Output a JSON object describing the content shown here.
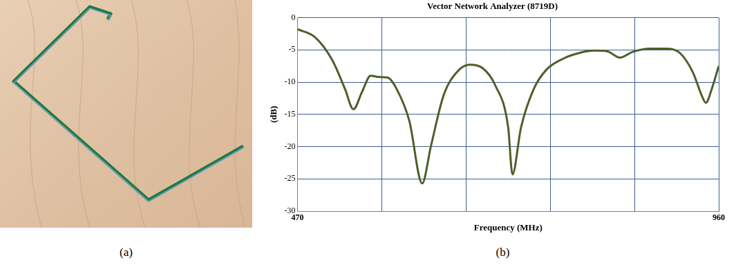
{
  "photo_label": "(a)",
  "chart_label": "(b)",
  "chart_data": {
    "type": "line",
    "title": "Vector Network Analyzer (8719D)",
    "x_label": "Frequency (MHz)",
    "y_label": "(dB)",
    "x": [
      470,
      490,
      510,
      525,
      535,
      545,
      555,
      565,
      575,
      585,
      600,
      615,
      625,
      640,
      655,
      670,
      685,
      700,
      715,
      720,
      730,
      745,
      760,
      780,
      800,
      815,
      830,
      845,
      860,
      880,
      900,
      915,
      930,
      940,
      945,
      952,
      960
    ],
    "values": [
      -1.8,
      -3,
      -6.5,
      -11,
      -14.2,
      -11.5,
      -9,
      -9.2,
      -9.3,
      -11,
      -16,
      -25.7,
      -20,
      -12,
      -8.5,
      -7.3,
      -7.8,
      -10.5,
      -17,
      -24.3,
      -17,
      -11,
      -8,
      -6.3,
      -5.4,
      -5.1,
      -5.2,
      -6.2,
      -5.3,
      -4.8,
      -4.8,
      -5.5,
      -8.5,
      -12,
      -13.2,
      -11,
      -7.5
    ],
    "color": "#4f5e2a",
    "xlim": [
      470,
      960
    ],
    "xticks": [
      470,
      {
        "value": 568,
        "label": null
      },
      {
        "value": 666,
        "label": null
      },
      {
        "value": 764,
        "label": null
      },
      {
        "value": 862,
        "label": null
      },
      960
    ],
    "ylim": [
      -30,
      0
    ],
    "yticks": [
      -30,
      -25,
      -20,
      -15,
      -10,
      -5,
      0
    ],
    "grid": true
  }
}
